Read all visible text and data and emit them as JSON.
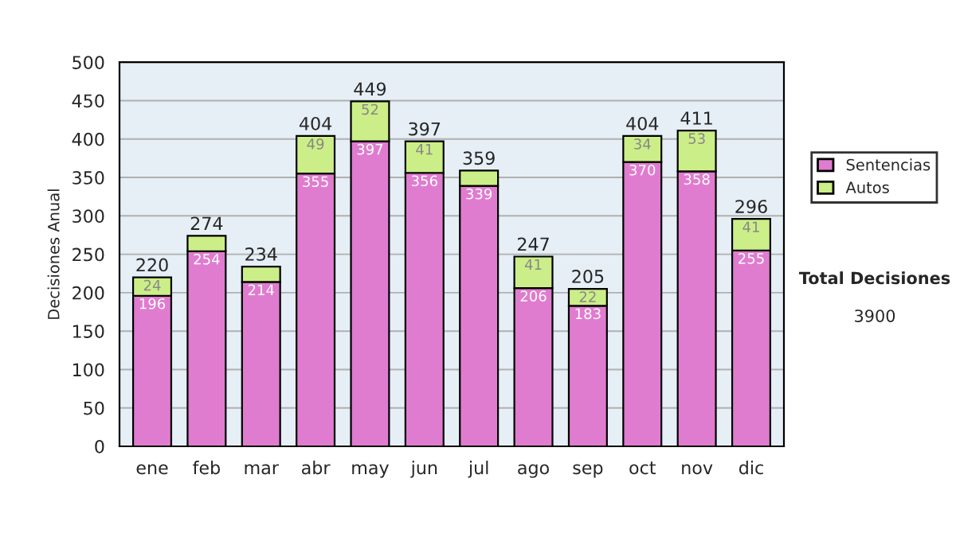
{
  "chart_data": {
    "type": "bar",
    "stacked": true,
    "ylabel": "Decisiones Anual",
    "categories": [
      "ene",
      "feb",
      "mar",
      "abr",
      "may",
      "jun",
      "jul",
      "ago",
      "sep",
      "oct",
      "nov",
      "dic"
    ],
    "series": [
      {
        "name": "Sentencias",
        "color": "#e07ccf",
        "values": [
          196,
          254,
          214,
          355,
          397,
          356,
          339,
          206,
          183,
          370,
          358,
          255
        ],
        "value_labels": [
          "196",
          "254",
          "214",
          "355",
          "397",
          "356",
          "339",
          "206",
          "183",
          "370",
          "358",
          "255"
        ]
      },
      {
        "name": "Autos",
        "color": "#ccee88",
        "values": [
          24,
          20,
          20,
          49,
          52,
          41,
          20,
          41,
          22,
          34,
          53,
          41
        ],
        "value_labels": [
          "24",
          null,
          null,
          "49",
          "52",
          "41",
          null,
          "41",
          "22",
          "34",
          "53",
          "41"
        ]
      }
    ],
    "totals": [
      "220",
      "274",
      "234",
      "404",
      "449",
      "397",
      "359",
      "247",
      "205",
      "404",
      "411",
      "296"
    ],
    "ylim": [
      0,
      500
    ],
    "yticks": [
      0,
      50,
      100,
      150,
      200,
      250,
      300,
      350,
      400,
      450,
      500
    ],
    "grid": "y",
    "legend": "right",
    "annotations": [
      "Total Decisiones",
      "3900"
    ]
  }
}
